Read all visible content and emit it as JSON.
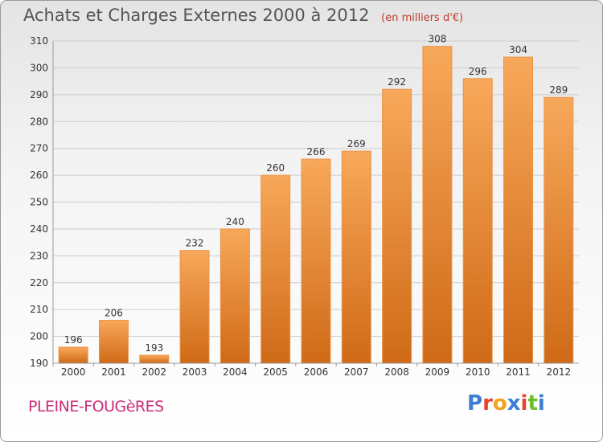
{
  "header": {
    "title": "Achats et Charges Externes 2000 à 2012",
    "subtitle": "(en milliers d'€)"
  },
  "footer": {
    "town": "PLEINE-FOUGèRES",
    "logo_text": "Proxiti",
    "logo_colors": [
      "#3a7fd5",
      "#e8452a",
      "#f2a21d",
      "#3a7fd5",
      "#e8452a",
      "#6cbf2a",
      "#3a7fd5"
    ]
  },
  "colors": {
    "bar_top": "#f8a85a",
    "bar_bottom": "#cf6a17",
    "grid": "#cccccc",
    "axis_text": "#333333"
  },
  "chart_data": {
    "type": "bar",
    "title": "Achats et Charges Externes 2000 à 2012",
    "categories": [
      "2000",
      "2001",
      "2002",
      "2003",
      "2004",
      "2005",
      "2006",
      "2007",
      "2008",
      "2009",
      "2010",
      "2011",
      "2012"
    ],
    "values": [
      196,
      206,
      193,
      232,
      240,
      260,
      266,
      269,
      292,
      308,
      296,
      304,
      289
    ],
    "ylim": [
      190,
      310
    ],
    "yticks": [
      190,
      200,
      210,
      220,
      230,
      240,
      250,
      260,
      270,
      280,
      290,
      300,
      310
    ],
    "grid": true,
    "data_labels": true
  }
}
